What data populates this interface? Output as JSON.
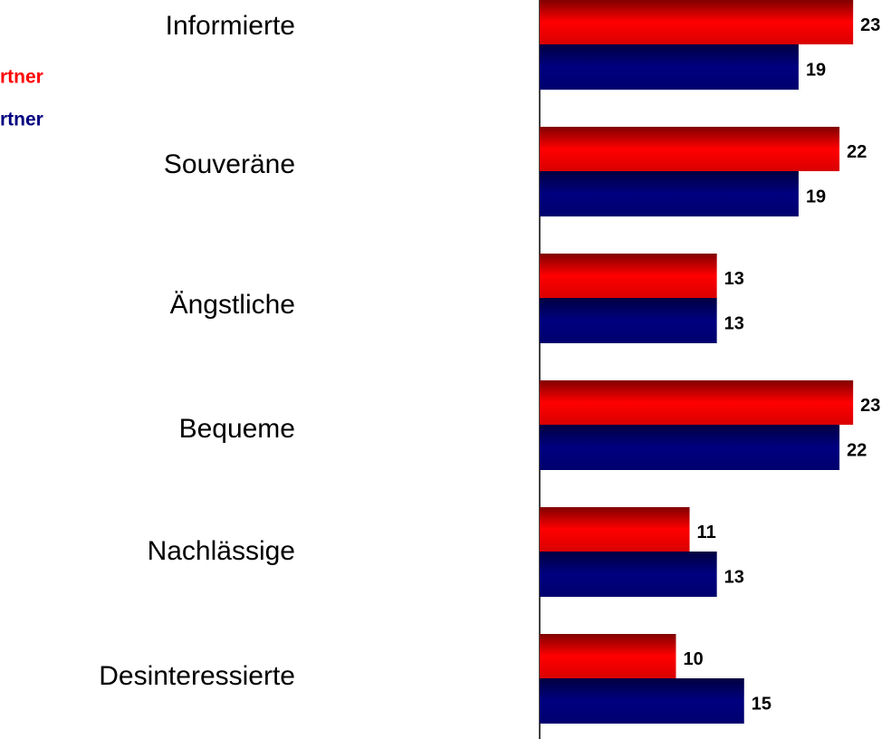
{
  "chart_data": {
    "type": "bar",
    "orientation": "horizontal",
    "categories": [
      "Informierte",
      "Souveräne",
      "Ängstliche",
      "Bequeme",
      "Nachlässige",
      "Desinteressierte"
    ],
    "series": [
      {
        "name": "rtner",
        "color": "#ff0000",
        "values": [
          23,
          22,
          13,
          23,
          11,
          10
        ]
      },
      {
        "name": "rtner",
        "color": "#000080",
        "values": [
          19,
          19,
          13,
          22,
          13,
          15
        ]
      }
    ]
  }
}
